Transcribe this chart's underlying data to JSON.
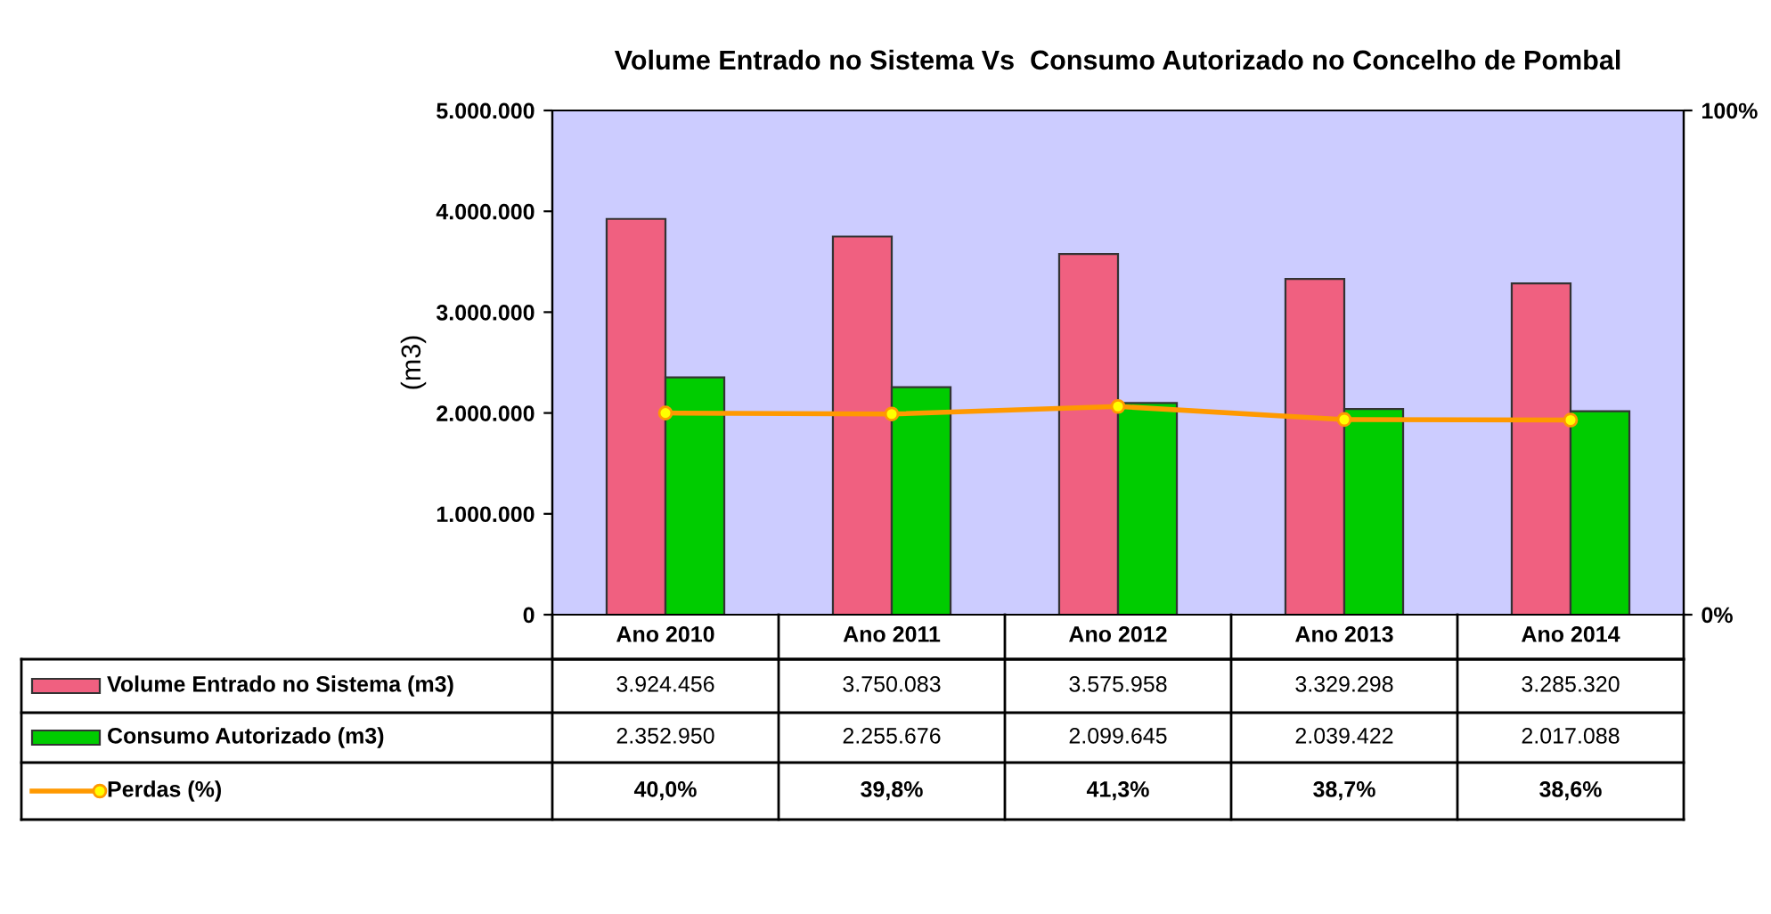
{
  "chart_data": {
    "type": "bar",
    "title": "Volume Entrado no Sistema Vs  Consumo Autorizado no Concelho de Pombal",
    "ylabel": "(m3)",
    "categories": [
      "Ano 2010",
      "Ano 2011",
      "Ano 2012",
      "Ano 2013",
      "Ano 2014"
    ],
    "series": [
      {
        "name": "Volume Entrado no Sistema (m3)",
        "color": "#f06080",
        "values": [
          3924456,
          3750083,
          3575958,
          3329298,
          3285320
        ],
        "value_labels": [
          "3.924.456",
          "3.750.083",
          "3.575.958",
          "3.329.298",
          "3.285.320"
        ]
      },
      {
        "name": "Consumo Autorizado (m3)",
        "color": "#00cc00",
        "values": [
          2352950,
          2255676,
          2099645,
          2039422,
          2017088
        ],
        "value_labels": [
          "2.352.950",
          "2.255.676",
          "2.099.645",
          "2.039.422",
          "2.017.088"
        ]
      },
      {
        "name": "Perdas (%)",
        "type": "line",
        "axis": "y2",
        "color": "#ff9900",
        "marker": "circle",
        "values": [
          40.0,
          39.8,
          41.3,
          38.7,
          38.6
        ],
        "value_labels": [
          "40,0%",
          "39,8%",
          "41,3%",
          "38,7%",
          "38,6%"
        ]
      }
    ],
    "ylim": [
      0,
      5000000
    ],
    "yticks": [
      {
        "value": 0,
        "label": "0"
      },
      {
        "value": 1000000,
        "label": "1.000.000"
      },
      {
        "value": 2000000,
        "label": "2.000.000"
      },
      {
        "value": 3000000,
        "label": "3.000.000"
      },
      {
        "value": 4000000,
        "label": "4.000.000"
      },
      {
        "value": 5000000,
        "label": "5.000.000"
      }
    ],
    "y2lim": [
      0,
      100
    ],
    "y2ticks": [
      {
        "value": 0,
        "label": "0%"
      },
      {
        "value": 100,
        "label": "100%"
      }
    ],
    "grid": false,
    "legend": "bottom"
  }
}
